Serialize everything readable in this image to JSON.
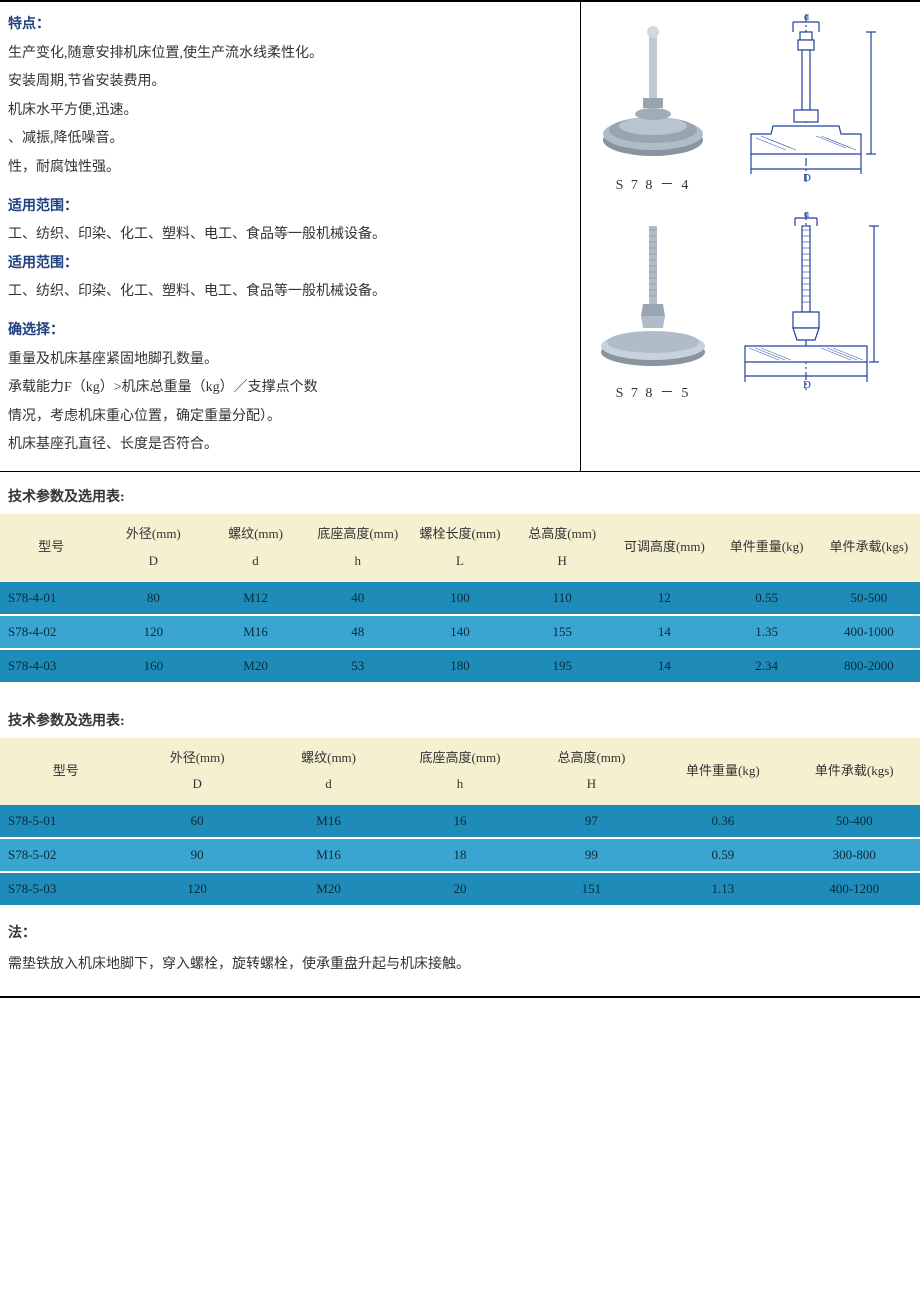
{
  "features": {
    "heading": "特点：",
    "lines": [
      "生产变化,随意安排机床位置,使生产流水线柔性化。",
      "安装周期,节省安装费用。",
      "机床水平方便,迅速。",
      "、减振,降低噪音。",
      "性，耐腐蚀性强。"
    ]
  },
  "scope1": {
    "heading": "适用范围：",
    "line": "工、纺织、印染、化工、塑料、电工、食品等一般机械设备。"
  },
  "scope2": {
    "heading": "适用范围：",
    "line": "工、纺织、印染、化工、塑料、电工、食品等一般机械设备。"
  },
  "selection": {
    "heading": "确选择：",
    "lines": [
      "重量及机床基座紧固地脚孔数量。",
      "承载能力F（kg）>机床总重量（kg）／支撑点个数",
      "情况，考虑机床重心位置，确定重量分配）。",
      "机床基座孔直径、长度是否符合。"
    ]
  },
  "products": {
    "p1_label": "S 7 8 － 4",
    "p2_label": "S 7 8 － 5",
    "dim_d": "d",
    "dim_D": "D",
    "color_part": "#a8b4c0",
    "color_bolt": "#b8c4d0",
    "color_diagram": "#2040a0"
  },
  "table1": {
    "title": "技术参数及选用表:",
    "header_bg": "#f4f0d0",
    "row_colors": [
      "#1e8bb8",
      "#3aa5d0"
    ],
    "columns": [
      {
        "label": "型号",
        "sym": ""
      },
      {
        "label": "外径(mm)",
        "sym": "D"
      },
      {
        "label": "螺纹(mm)",
        "sym": "d"
      },
      {
        "label": "底座高度(mm)",
        "sym": "h"
      },
      {
        "label": "螺栓长度(mm)",
        "sym": "L"
      },
      {
        "label": "总高度(mm)",
        "sym": "H"
      },
      {
        "label": "可调高度(mm)",
        "sym": ""
      },
      {
        "label": "单件重量(kg)",
        "sym": ""
      },
      {
        "label": "单件承载(kgs)",
        "sym": ""
      }
    ],
    "rows": [
      [
        "S78-4-01",
        "80",
        "M12",
        "40",
        "100",
        "110",
        "12",
        "0.55",
        "50-500"
      ],
      [
        "S78-4-02",
        "120",
        "M16",
        "48",
        "140",
        "155",
        "14",
        "1.35",
        "400-1000"
      ],
      [
        "S78-4-03",
        "160",
        "M20",
        "53",
        "180",
        "195",
        "14",
        "2.34",
        "800-2000"
      ]
    ]
  },
  "table2": {
    "title": "技术参数及选用表:",
    "header_bg": "#f4f0d0",
    "row_colors": [
      "#1e8bb8",
      "#3aa5d0"
    ],
    "columns": [
      {
        "label": "型号",
        "sym": ""
      },
      {
        "label": "外径(mm)",
        "sym": "D"
      },
      {
        "label": "螺纹(mm)",
        "sym": "d"
      },
      {
        "label": "底座高度(mm)",
        "sym": "h"
      },
      {
        "label": "总高度(mm)",
        "sym": "H"
      },
      {
        "label": "单件重量(kg)",
        "sym": ""
      },
      {
        "label": "单件承载(kgs)",
        "sym": ""
      }
    ],
    "rows": [
      [
        "S78-5-01",
        "60",
        "M16",
        "16",
        "97",
        "0.36",
        "50-400"
      ],
      [
        "S78-5-02",
        "90",
        "M16",
        "18",
        "99",
        "0.59",
        "300-800"
      ],
      [
        "S78-5-03",
        "120",
        "M20",
        "20",
        "151",
        "1.13",
        "400-1200"
      ]
    ]
  },
  "method": {
    "heading": "法：",
    "line": "需垫铁放入机床地脚下，穿入螺栓，旋转螺栓，使承重盘升起与机床接触。"
  }
}
